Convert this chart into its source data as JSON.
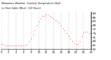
{
  "background_color": "#ffffff",
  "grid_color": "#aaaaaa",
  "line_color_temp": "#ff0000",
  "ylim": [
    62,
    90
  ],
  "xlim": [
    0,
    24
  ],
  "ytick_positions": [
    62,
    65,
    68,
    71,
    74,
    77,
    80,
    83,
    86,
    89
  ],
  "xtick_positions": [
    0,
    2,
    4,
    6,
    8,
    10,
    12,
    14,
    16,
    18,
    20,
    22,
    24
  ],
  "temperature": [
    66,
    66,
    65,
    65,
    65,
    65,
    65,
    65,
    65,
    65,
    65,
    65,
    65,
    65,
    66,
    68,
    70,
    73,
    76,
    80,
    83,
    85,
    87,
    87,
    88,
    88,
    87,
    86,
    85,
    84,
    83,
    82,
    80,
    78,
    76,
    74,
    72,
    70,
    68,
    67,
    66,
    66,
    68,
    72,
    74,
    75,
    75,
    74
  ],
  "hours": [
    0.0,
    0.5,
    1.0,
    1.5,
    2.0,
    2.5,
    3.0,
    3.5,
    4.0,
    4.5,
    5.0,
    5.5,
    6.0,
    6.5,
    7.0,
    7.5,
    8.0,
    8.5,
    9.0,
    9.5,
    10.0,
    10.5,
    11.0,
    11.5,
    12.0,
    12.5,
    13.0,
    13.5,
    14.0,
    14.5,
    15.0,
    15.5,
    16.0,
    16.5,
    17.0,
    17.5,
    18.0,
    18.5,
    19.0,
    19.5,
    20.0,
    20.5,
    21.0,
    21.5,
    22.0,
    22.5,
    23.0,
    23.5
  ],
  "title_line1": "Milwaukee Weather  Outdoor Temperature (Red)",
  "title_line2": "vs Heat Index (Blue)  (24 Hours)"
}
